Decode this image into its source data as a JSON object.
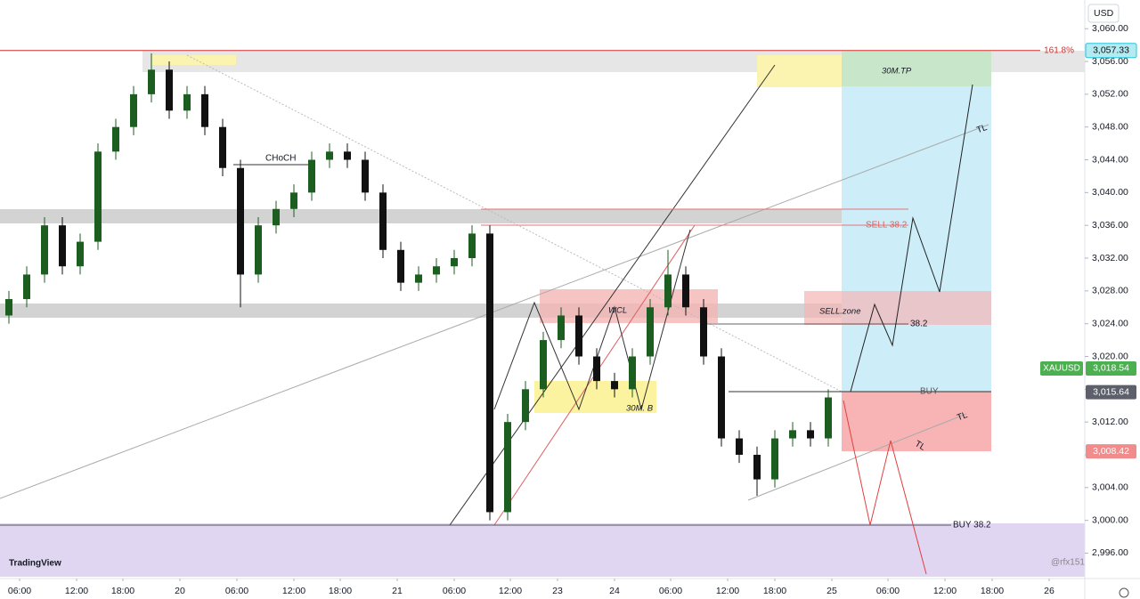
{
  "chart_data": {
    "type": "candlestick",
    "currency": "USD",
    "symbol": "XAUUSD",
    "x": [
      1,
      3,
      5,
      7,
      9,
      11,
      13,
      15,
      17,
      19,
      21,
      23,
      25,
      27,
      29,
      31,
      33,
      35,
      37,
      39,
      41,
      43,
      45,
      47,
      49,
      51,
      53,
      55,
      57,
      59,
      61,
      63,
      65,
      67,
      69,
      71,
      73,
      75,
      77,
      79,
      81,
      83,
      85,
      87,
      89,
      91,
      93
    ],
    "open": [
      3025,
      3027,
      3030,
      3036,
      3031,
      3034,
      3045,
      3048,
      3052,
      3055,
      3050,
      3052,
      3048,
      3043,
      3030,
      3036,
      3038,
      3040,
      3044,
      3045,
      3044,
      3040,
      3033,
      3029,
      3030,
      3031,
      3032,
      3035,
      3001,
      3012,
      3016,
      3022,
      3025,
      3020,
      3017,
      3016,
      3020,
      3026,
      3030,
      3026,
      3020,
      3010,
      3008,
      3005,
      3010,
      3011,
      3010
    ],
    "high": [
      3028,
      3031,
      3037,
      3037,
      3035,
      3046,
      3049,
      3053,
      3057,
      3056,
      3053,
      3053,
      3049,
      3044,
      3037,
      3039,
      3041,
      3045,
      3046,
      3046,
      3045,
      3041,
      3034,
      3031,
      3032,
      3033,
      3036,
      3036,
      3013,
      3017,
      3023,
      3026,
      3026,
      3021,
      3018,
      3021,
      3027,
      3033,
      3031,
      3027,
      3021,
      3011,
      3009,
      3011,
      3012,
      3012,
      3016
    ],
    "low": [
      3024,
      3026,
      3029,
      3030,
      3030,
      3033,
      3044,
      3047,
      3051,
      3049,
      3049,
      3047,
      3042,
      3026,
      3029,
      3035,
      3037,
      3039,
      3043,
      3043,
      3039,
      3032,
      3028,
      3028,
      3029,
      3030,
      3031,
      3000,
      3000,
      3011,
      3015,
      3021,
      3019,
      3016,
      3015,
      3015,
      3019,
      3025,
      3025,
      3019,
      3009,
      3007,
      3003,
      3004,
      3009,
      3009,
      3009
    ],
    "close": [
      3027,
      3030,
      3036,
      3031,
      3034,
      3045,
      3048,
      3052,
      3055,
      3050,
      3052,
      3048,
      3043,
      3030,
      3036,
      3038,
      3040,
      3044,
      3045,
      3044,
      3040,
      3033,
      3029,
      3030,
      3031,
      3032,
      3035,
      3001,
      3012,
      3016,
      3022,
      3025,
      3020,
      3017,
      3016,
      3020,
      3026,
      3030,
      3026,
      3020,
      3010,
      3008,
      3005,
      3010,
      3011,
      3010,
      3015
    ],
    "up_color": "#1b5e20",
    "down_color": "#111111",
    "ylim": [
      2992.9,
      3063.5
    ],
    "yticks": [
      {
        "value": 2996,
        "label": "2,996.00"
      },
      {
        "value": 3000,
        "label": "3,000.00"
      },
      {
        "value": 3004,
        "label": "3,004.00"
      },
      {
        "value": 3008,
        "label": "3,008.00"
      },
      {
        "value": 3012,
        "label": "3,012.00"
      },
      {
        "value": 3016,
        "label": "3,016.00"
      },
      {
        "value": 3020,
        "label": "3,020.00"
      },
      {
        "value": 3024,
        "label": "3,024.00"
      },
      {
        "value": 3028,
        "label": "3,028.00"
      },
      {
        "value": 3032,
        "label": "3,032.00"
      },
      {
        "value": 3036,
        "label": "3,036.00"
      },
      {
        "value": 3040,
        "label": "3,040.00"
      },
      {
        "value": 3044,
        "label": "3,044.00"
      },
      {
        "value": 3048,
        "label": "3,048.00"
      },
      {
        "value": 3052,
        "label": "3,052.00"
      },
      {
        "value": 3056,
        "label": "3,056.00"
      },
      {
        "value": 3060,
        "label": "3,060.00"
      }
    ],
    "xlim": [
      0,
      121.8
    ],
    "xticks": [
      {
        "value": 2.2,
        "label": "06:00"
      },
      {
        "value": 8.6,
        "label": "12:00"
      },
      {
        "value": 13.8,
        "label": "18:00"
      },
      {
        "value": 20.2,
        "label": "20"
      },
      {
        "value": 26.6,
        "label": "06:00"
      },
      {
        "value": 33,
        "label": "12:00"
      },
      {
        "value": 38.2,
        "label": "18:00"
      },
      {
        "value": 44.6,
        "label": "21"
      },
      {
        "value": 51,
        "label": "06:00"
      },
      {
        "value": 57.3,
        "label": "12:00"
      },
      {
        "value": 62.6,
        "label": "23"
      },
      {
        "value": 69,
        "label": "24"
      },
      {
        "value": 75.3,
        "label": "06:00"
      },
      {
        "value": 81.7,
        "label": "12:00"
      },
      {
        "value": 87,
        "label": "18:00"
      },
      {
        "value": 93.4,
        "label": "25"
      },
      {
        "value": 99.7,
        "label": "06:00"
      },
      {
        "value": 106.1,
        "label": "12:00"
      },
      {
        "value": 111.4,
        "label": "18:00"
      },
      {
        "value": 117.8,
        "label": "26"
      }
    ],
    "price_tags": [
      {
        "value": 3057.33,
        "label": "3,057.33",
        "color": "#b2ebf2",
        "text_color": "#111111"
      },
      {
        "value": 3018.54,
        "label": "3,018.54",
        "color": "#4caf50",
        "text_color": "#ffffff"
      },
      {
        "value": 3015.64,
        "label": "3,015.64",
        "color": "#5d606b",
        "text_color": "#ffffff"
      },
      {
        "value": 3008.42,
        "label": "3,008.42",
        "color": "#f28b8b",
        "text_color": "#ffffff"
      }
    ],
    "fib_label": "161.8%",
    "annotations": [
      "CHoCH",
      "WCL",
      "30M. B",
      "SELL.zone",
      "38.2",
      "30M.TP",
      "SELL 38.2",
      "BUY",
      "BUY 38.2",
      "TL",
      "TL",
      "TL"
    ]
  },
  "watermarks": [
    "TradingView",
    "@rfx151"
  ]
}
